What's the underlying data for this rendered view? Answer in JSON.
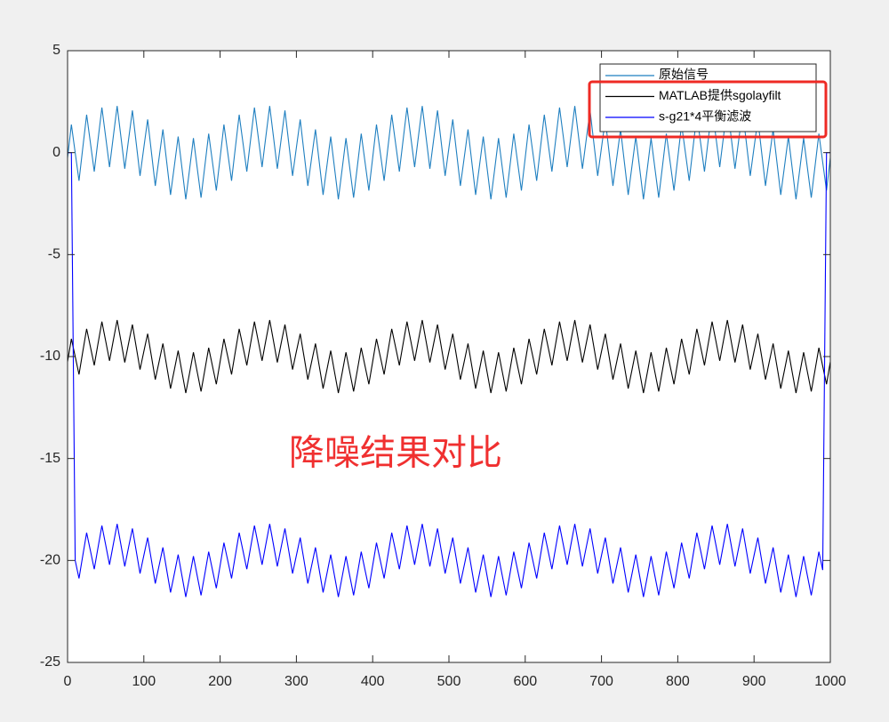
{
  "chart_data": {
    "type": "line",
    "annotation": "降噪结果对比",
    "x": [
      0,
      5,
      10,
      15,
      20,
      25,
      30,
      35,
      40,
      45,
      50,
      55,
      60,
      65,
      70,
      75,
      80,
      85,
      90,
      95,
      100,
      105,
      110,
      115,
      120,
      125,
      130,
      135,
      140,
      145,
      150,
      155,
      160,
      165,
      170,
      175,
      180,
      185,
      190,
      195,
      200,
      205,
      210,
      215,
      220,
      225,
      230,
      235,
      240,
      245,
      250,
      255,
      260,
      265,
      270,
      275,
      280,
      285,
      290,
      295,
      300,
      305,
      310,
      315,
      320,
      325,
      330,
      335,
      340,
      345,
      350,
      355,
      360,
      365,
      370,
      375,
      380,
      385,
      390,
      395,
      400,
      405,
      410,
      415,
      420,
      425,
      430,
      435,
      440,
      445,
      450,
      455,
      460,
      465,
      470,
      475,
      480,
      485,
      490,
      495,
      500,
      505,
      510,
      515,
      520,
      525,
      530,
      535,
      540,
      545,
      550,
      555,
      560,
      565,
      570,
      575,
      580,
      585,
      590,
      595,
      600,
      605,
      610,
      615,
      620,
      625,
      630,
      635,
      640,
      645,
      650,
      655,
      660,
      665,
      670,
      675,
      680,
      685,
      690,
      695,
      700,
      705,
      710,
      715,
      720,
      725,
      730,
      735,
      740,
      745,
      750,
      755,
      760,
      765,
      770,
      775,
      780,
      785,
      790,
      795,
      800,
      805,
      810,
      815,
      820,
      825,
      830,
      835,
      840,
      845,
      850,
      855,
      860,
      865,
      870,
      875,
      880,
      885,
      890,
      895,
      900,
      905,
      910,
      915,
      920,
      925,
      930,
      935,
      940,
      945,
      950,
      955,
      960,
      965,
      970,
      975,
      980,
      985,
      990,
      995,
      1000
    ],
    "series": [
      {
        "name": "原始信号",
        "color": "#1f7fc0",
        "values": [
          -0.25,
          1.38,
          0.0,
          -1.38,
          0.25,
          1.86,
          0.47,
          -0.93,
          0.65,
          2.21,
          0.76,
          -0.71,
          0.8,
          2.29,
          0.76,
          -0.79,
          0.65,
          2.07,
          0.47,
          -1.14,
          0.25,
          1.63,
          0.0,
          -1.63,
          -0.25,
          1.14,
          -0.47,
          -2.07,
          -0.65,
          0.79,
          -0.76,
          -2.29,
          -0.8,
          0.71,
          -0.76,
          -2.21,
          -0.65,
          0.93,
          -0.47,
          -1.86,
          -0.25,
          1.38,
          0.0,
          -1.38,
          0.25,
          1.86,
          0.47,
          -0.93,
          0.65,
          2.21,
          0.76,
          -0.71,
          0.8,
          2.29,
          0.76,
          -0.79,
          0.65,
          2.07,
          0.47,
          -1.14,
          0.25,
          1.63,
          0.0,
          -1.63,
          -0.25,
          1.14,
          -0.47,
          -2.07,
          -0.65,
          0.79,
          -0.76,
          -2.29,
          -0.8,
          0.71,
          -0.76,
          -2.21,
          -0.65,
          0.93,
          -0.47,
          -1.86,
          -0.25,
          1.38,
          0.0,
          -1.38,
          0.25,
          1.86,
          0.47,
          -0.93,
          0.65,
          2.21,
          0.76,
          -0.71,
          0.8,
          2.29,
          0.76,
          -0.79,
          0.65,
          2.07,
          0.47,
          -1.14,
          0.25,
          1.63,
          0.0,
          -1.63,
          -0.25,
          1.14,
          -0.47,
          -2.07,
          -0.65,
          0.79,
          -0.76,
          -2.29,
          -0.8,
          0.71,
          -0.76,
          -2.21,
          -0.65,
          0.93,
          -0.47,
          -1.86,
          -0.25,
          1.38,
          0.0,
          -1.38,
          0.25,
          1.86,
          0.47,
          -0.93,
          0.65,
          2.21,
          0.76,
          -0.71,
          0.8,
          2.29,
          0.76,
          -0.79,
          0.65,
          2.07,
          0.47,
          -1.14,
          0.25,
          1.63,
          0.0,
          -1.63,
          -0.25,
          1.14,
          -0.47,
          -2.07,
          -0.65,
          0.79,
          -0.76,
          -2.29,
          -0.8,
          0.71,
          -0.76,
          -2.21,
          -0.65,
          0.93,
          -0.47,
          -1.86,
          -0.25,
          1.38,
          0.0,
          -1.38,
          0.25,
          1.86,
          0.47,
          -0.93,
          0.65,
          2.21,
          0.76,
          -0.71,
          0.8,
          2.29,
          0.76,
          -0.79,
          0.65,
          2.07,
          0.47,
          -1.14,
          0.25,
          1.63,
          0.0,
          -1.63,
          -0.25,
          1.14,
          -0.47,
          -2.07,
          -0.65,
          0.79,
          -0.76,
          -2.29,
          -0.8,
          0.71,
          -0.76,
          -2.21,
          -0.65,
          0.93,
          -0.47,
          -1.86,
          -0.25
        ]
      },
      {
        "name": "MATLAB提供sgolayfilt",
        "color": "#000000",
        "values": [
          -10.25,
          -9.13,
          -10.0,
          -10.88,
          -9.75,
          -8.64,
          -9.53,
          -10.43,
          -9.35,
          -8.29,
          -9.24,
          -10.21,
          -9.2,
          -8.21,
          -9.24,
          -10.29,
          -9.35,
          -8.43,
          -9.53,
          -10.64,
          -9.75,
          -8.88,
          -10.0,
          -11.13,
          -10.25,
          -9.36,
          -10.47,
          -11.57,
          -10.65,
          -9.71,
          -10.76,
          -11.79,
          -10.8,
          -9.79,
          -10.76,
          -11.71,
          -10.65,
          -9.57,
          -10.47,
          -11.36,
          -10.25,
          -9.13,
          -10.0,
          -10.88,
          -9.75,
          -8.64,
          -9.53,
          -10.43,
          -9.35,
          -8.29,
          -9.24,
          -10.21,
          -9.2,
          -8.21,
          -9.24,
          -10.29,
          -9.35,
          -8.43,
          -9.53,
          -10.64,
          -9.75,
          -8.88,
          -10.0,
          -11.13,
          -10.25,
          -9.36,
          -10.47,
          -11.57,
          -10.65,
          -9.71,
          -10.76,
          -11.79,
          -10.8,
          -9.79,
          -10.76,
          -11.71,
          -10.65,
          -9.57,
          -10.47,
          -11.36,
          -10.25,
          -9.13,
          -10.0,
          -10.88,
          -9.75,
          -8.64,
          -9.53,
          -10.43,
          -9.35,
          -8.29,
          -9.24,
          -10.21,
          -9.2,
          -8.21,
          -9.24,
          -10.29,
          -9.35,
          -8.43,
          -9.53,
          -10.64,
          -9.75,
          -8.88,
          -10.0,
          -11.13,
          -10.25,
          -9.36,
          -10.47,
          -11.57,
          -10.65,
          -9.71,
          -10.76,
          -11.79,
          -10.8,
          -9.79,
          -10.76,
          -11.71,
          -10.65,
          -9.57,
          -10.47,
          -11.36,
          -10.25,
          -9.13,
          -10.0,
          -10.88,
          -9.75,
          -8.64,
          -9.53,
          -10.43,
          -9.35,
          -8.29,
          -9.24,
          -10.21,
          -9.2,
          -8.21,
          -9.24,
          -10.29,
          -9.35,
          -8.43,
          -9.53,
          -10.64,
          -9.75,
          -8.88,
          -10.0,
          -11.13,
          -10.25,
          -9.36,
          -10.47,
          -11.57,
          -10.65,
          -9.71,
          -10.76,
          -11.79,
          -10.8,
          -9.79,
          -10.76,
          -11.71,
          -10.65,
          -9.57,
          -10.47,
          -11.36,
          -10.25,
          -9.13,
          -10.0,
          -10.88,
          -9.75,
          -8.64,
          -9.53,
          -10.43,
          -9.35,
          -8.29,
          -9.24,
          -10.21,
          -9.2,
          -8.21,
          -9.24,
          -10.29,
          -9.35,
          -8.43,
          -9.53,
          -10.64,
          -9.75,
          -8.88,
          -10.0,
          -11.13,
          -10.25,
          -9.36,
          -10.47,
          -11.57,
          -10.65,
          -9.71,
          -10.76,
          -11.79,
          -10.8,
          -9.79,
          -10.76,
          -11.71,
          -10.65,
          -9.57,
          -10.47,
          -11.36,
          -10.25
        ]
      },
      {
        "name": "s-g21*4平衡滤波",
        "color": "#0000ff",
        "values": [
          0,
          0,
          -20.0,
          -20.88,
          -19.75,
          -18.64,
          -19.53,
          -20.43,
          -19.35,
          -18.29,
          -19.24,
          -20.21,
          -19.2,
          -18.21,
          -19.24,
          -20.29,
          -19.35,
          -18.43,
          -19.53,
          -20.64,
          -19.75,
          -18.88,
          -20.0,
          -21.13,
          -20.25,
          -19.36,
          -20.47,
          -21.57,
          -20.65,
          -19.71,
          -20.76,
          -21.79,
          -20.8,
          -19.79,
          -20.76,
          -21.71,
          -20.65,
          -19.57,
          -20.47,
          -21.36,
          -20.25,
          -19.13,
          -20.0,
          -20.88,
          -19.75,
          -18.64,
          -19.53,
          -20.43,
          -19.35,
          -18.29,
          -19.24,
          -20.21,
          -19.2,
          -18.21,
          -19.24,
          -20.29,
          -19.35,
          -18.43,
          -19.53,
          -20.64,
          -19.75,
          -18.88,
          -20.0,
          -21.13,
          -20.25,
          -19.36,
          -20.47,
          -21.57,
          -20.65,
          -19.71,
          -20.76,
          -21.79,
          -20.8,
          -19.79,
          -20.76,
          -21.71,
          -20.65,
          -19.57,
          -20.47,
          -21.36,
          -20.25,
          -19.13,
          -20.0,
          -20.88,
          -19.75,
          -18.64,
          -19.53,
          -20.43,
          -19.35,
          -18.29,
          -19.24,
          -20.21,
          -19.2,
          -18.21,
          -19.24,
          -20.29,
          -19.35,
          -18.43,
          -19.53,
          -20.64,
          -19.75,
          -18.88,
          -20.0,
          -21.13,
          -20.25,
          -19.36,
          -20.47,
          -21.57,
          -20.65,
          -19.71,
          -20.76,
          -21.79,
          -20.8,
          -19.79,
          -20.76,
          -21.71,
          -20.65,
          -19.57,
          -20.47,
          -21.36,
          -20.25,
          -19.13,
          -20.0,
          -20.88,
          -19.75,
          -18.64,
          -19.53,
          -20.43,
          -19.35,
          -18.29,
          -19.24,
          -20.21,
          -19.2,
          -18.21,
          -19.24,
          -20.29,
          -19.35,
          -18.43,
          -19.53,
          -20.64,
          -19.75,
          -18.88,
          -20.0,
          -21.13,
          -20.25,
          -19.36,
          -20.47,
          -21.57,
          -20.65,
          -19.71,
          -20.76,
          -21.79,
          -20.8,
          -19.79,
          -20.76,
          -21.71,
          -20.65,
          -19.57,
          -20.47,
          -21.36,
          -20.25,
          -19.13,
          -20.0,
          -20.88,
          -19.75,
          -18.64,
          -19.53,
          -20.43,
          -19.35,
          -18.29,
          -19.24,
          -20.21,
          -19.2,
          -18.21,
          -19.24,
          -20.29,
          -19.35,
          -18.43,
          -19.53,
          -20.64,
          -19.75,
          -18.88,
          -20.0,
          -21.13,
          -20.25,
          -19.36,
          -20.47,
          -21.57,
          -20.65,
          -19.71,
          -20.76,
          -21.79,
          -20.8,
          -19.79,
          -20.76,
          -21.71,
          -20.65,
          -19.57,
          -20.47,
          0,
          0
        ]
      }
    ],
    "xlim": [
      0,
      1000
    ],
    "xticks": [
      0,
      100,
      200,
      300,
      400,
      500,
      600,
      700,
      800,
      900,
      1000
    ],
    "ylim": [
      -25,
      5
    ],
    "yticks": [
      -25,
      -20,
      -15,
      -10,
      -5,
      0,
      5
    ],
    "legend": "upper right",
    "grid": false
  }
}
